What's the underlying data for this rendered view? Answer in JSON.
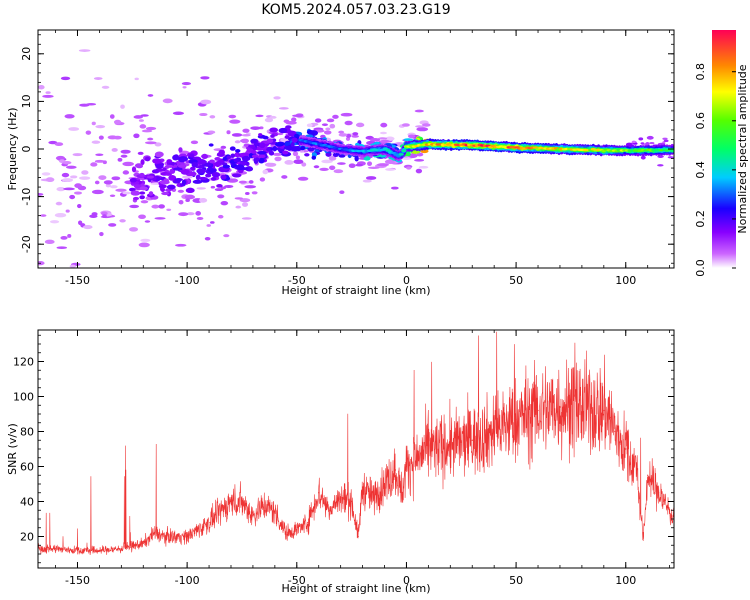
{
  "title": "KOM5.2024.057.03.23.G19",
  "chart_data": [
    {
      "type": "heatmap",
      "xlabel": "Height of straight line (km)",
      "ylabel": "Frequency (Hz)",
      "xlim": [
        -168,
        122
      ],
      "ylim": [
        -25,
        25
      ],
      "xticks": [
        -150,
        -100,
        -50,
        0,
        50,
        100
      ],
      "yticks": [
        -20,
        -10,
        0,
        10,
        20
      ],
      "colorbar": {
        "label": "Normalized spectral amplitude",
        "range": [
          0.0,
          0.97
        ],
        "ticks": [
          0.0,
          0.2,
          0.4,
          0.6,
          0.8
        ],
        "colormap": "gist_rainbow_r"
      },
      "ridge": {
        "x": [
          -120,
          -100,
          -80,
          -60,
          -50,
          -40,
          -30,
          -20,
          -10,
          -3,
          0,
          10,
          30,
          50,
          70,
          90,
          110,
          122
        ],
        "freq_hz": [
          -6,
          -4,
          -3,
          1,
          2,
          1,
          0,
          -0.5,
          0,
          -1.5,
          0.5,
          1,
          0.8,
          0.3,
          0,
          -0.3,
          -0.3,
          -0.2
        ],
        "amplitude": [
          0.15,
          0.18,
          0.2,
          0.2,
          0.28,
          0.3,
          0.3,
          0.35,
          0.4,
          0.35,
          0.6,
          0.75,
          0.85,
          0.8,
          0.7,
          0.65,
          0.55,
          0.5
        ]
      }
    },
    {
      "type": "line",
      "xlabel": "Height of straight line (km)",
      "ylabel": "SNR (v/v)",
      "xlim": [
        -168,
        122
      ],
      "ylim": [
        2,
        138
      ],
      "xticks": [
        -150,
        -100,
        -50,
        0,
        50,
        100
      ],
      "yticks": [
        20,
        40,
        60,
        80,
        100,
        120
      ],
      "series": [
        {
          "color": "#ee3333",
          "x": [
            -168,
            -160,
            -150,
            -140,
            -130,
            -120,
            -115,
            -110,
            -100,
            -90,
            -80,
            -75,
            -70,
            -65,
            -60,
            -55,
            -50,
            -45,
            -40,
            -35,
            -30,
            -25,
            -22,
            -20,
            -15,
            -10,
            -5,
            -2,
            0,
            5,
            10,
            20,
            30,
            40,
            50,
            60,
            70,
            80,
            90,
            93,
            95,
            100,
            105,
            108,
            110,
            115,
            120,
            122
          ],
          "y": [
            13,
            13,
            12,
            12,
            13,
            16,
            22,
            20,
            20,
            28,
            40,
            40,
            32,
            38,
            34,
            22,
            24,
            28,
            45,
            35,
            42,
            40,
            20,
            48,
            42,
            50,
            58,
            45,
            60,
            65,
            70,
            72,
            75,
            80,
            87,
            92,
            94,
            94,
            92,
            88,
            80,
            70,
            58,
            18,
            55,
            45,
            35,
            28
          ]
        }
      ]
    }
  ]
}
